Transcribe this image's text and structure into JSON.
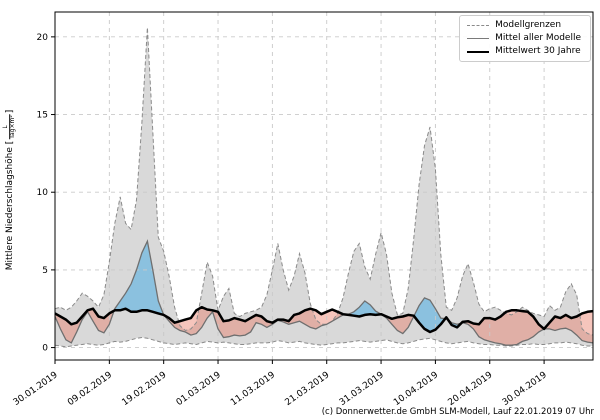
{
  "footer": "(c) Donnerwetter.de GmbH SLM-Modell, Lauf 22.01.2019 07 Uhr",
  "ylabel": {
    "prefix": "Mittlere Niederschlagshöhe [",
    "frac_num": "L",
    "frac_den": "Tag×m²",
    "suffix": "]"
  },
  "legend": {
    "items": [
      {
        "label": "Modellgrenzen",
        "style": "dashed",
        "color": "#8a8a8a"
      },
      {
        "label": "Mittel aller Modelle",
        "style": "gray",
        "color": "#7a7a7a"
      },
      {
        "label": "Mittelwert 30 Jahre",
        "style": "black",
        "color": "#000000"
      }
    ]
  },
  "colors": {
    "band_fill": "rgba(170,170,170,0.45)",
    "above_fill": "rgba(125,188,223,0.85)",
    "below_fill": "rgba(233,116,96,0.42)",
    "bound_line": "#8a8a8a",
    "mean_line": "#6f6f6f",
    "climate_line": "#000000",
    "grid": "#c9c9c9",
    "spine": "#000000"
  },
  "chart_data": {
    "type": "area",
    "title": "",
    "xlabel": "",
    "ylabel": "Mittlere Niederschlagshöhe [L/(Tag×m²)]",
    "grid": true,
    "legend_position": "upper right",
    "xlim": [
      0,
      99
    ],
    "ylim": [
      -0.8,
      21.6
    ],
    "y_ticks": [
      0,
      5,
      10,
      15,
      20
    ],
    "x_tick_days": [
      0,
      10,
      20,
      30,
      40,
      50,
      60,
      70,
      80,
      90
    ],
    "x_ticklabels": [
      "30.01.2019",
      "09.02.2019",
      "19.02.2019",
      "01.03.2019",
      "11.03.2019",
      "21.03.2019",
      "31.03.2019",
      "10.04.2019",
      "20.04.2019",
      "30.04.2019"
    ],
    "series": [
      {
        "name": "Modellgrenze oben",
        "values": [
          2.5,
          2.6,
          2.4,
          2.6,
          3.0,
          3.5,
          3.3,
          3.0,
          2.6,
          3.4,
          5.5,
          8.0,
          9.7,
          8.0,
          7.6,
          9.5,
          14.5,
          20.6,
          13.9,
          7.1,
          6.2,
          4.6,
          2.6,
          1.4,
          1.1,
          1.2,
          1.6,
          3.5,
          5.5,
          4.6,
          2.4,
          3.3,
          3.8,
          2.2,
          2.0,
          2.2,
          2.3,
          2.4,
          2.6,
          3.4,
          5.0,
          6.7,
          5.0,
          3.7,
          4.6,
          6.05,
          4.8,
          2.8,
          1.8,
          1.5,
          1.5,
          1.7,
          2.2,
          3.2,
          4.8,
          6.2,
          6.7,
          5.2,
          4.4,
          6.0,
          7.4,
          6.0,
          3.5,
          2.1,
          2.2,
          3.8,
          7.0,
          10.5,
          13.0,
          14.2,
          11.5,
          6.0,
          2.6,
          2.4,
          3.2,
          4.6,
          5.4,
          4.2,
          2.8,
          2.3,
          2.5,
          2.6,
          2.4,
          2.2,
          2.1,
          2.3,
          2.6,
          2.4,
          2.2,
          2.1,
          2.0,
          2.7,
          2.4,
          2.6,
          3.6,
          4.1,
          3.4,
          1.2,
          0.9,
          0.8
        ]
      },
      {
        "name": "Modellgrenze unten",
        "values": [
          0.15,
          0.1,
          0.05,
          0.1,
          0.15,
          0.2,
          0.25,
          0.2,
          0.15,
          0.2,
          0.3,
          0.4,
          0.35,
          0.4,
          0.5,
          0.6,
          0.65,
          0.6,
          0.5,
          0.4,
          0.3,
          0.25,
          0.2,
          0.25,
          0.3,
          0.25,
          0.2,
          0.3,
          0.4,
          0.35,
          0.3,
          0.35,
          0.3,
          0.25,
          0.2,
          0.2,
          0.25,
          0.3,
          0.3,
          0.3,
          0.35,
          0.45,
          0.4,
          0.3,
          0.35,
          0.4,
          0.3,
          0.25,
          0.2,
          0.15,
          0.2,
          0.25,
          0.3,
          0.3,
          0.35,
          0.4,
          0.45,
          0.4,
          0.35,
          0.4,
          0.45,
          0.5,
          0.4,
          0.3,
          0.25,
          0.3,
          0.4,
          0.5,
          0.55,
          0.6,
          0.5,
          0.4,
          0.3,
          0.25,
          0.3,
          0.35,
          0.4,
          0.3,
          0.25,
          0.2,
          0.2,
          0.15,
          0.15,
          0.1,
          0.1,
          0.15,
          0.2,
          0.2,
          0.25,
          0.2,
          0.2,
          0.25,
          0.3,
          0.3,
          0.35,
          0.3,
          0.25,
          0.15,
          0.1,
          0.1
        ]
      },
      {
        "name": "Mittel aller Modelle",
        "values": [
          2.0,
          1.2,
          0.5,
          0.3,
          1.0,
          1.8,
          2.3,
          1.7,
          1.1,
          0.95,
          1.5,
          2.5,
          3.0,
          3.5,
          4.1,
          5.0,
          6.1,
          6.85,
          5.0,
          3.0,
          2.1,
          1.7,
          1.3,
          1.1,
          1.0,
          0.8,
          0.9,
          1.3,
          1.9,
          2.3,
          1.2,
          0.65,
          0.7,
          0.8,
          0.75,
          0.8,
          1.0,
          1.6,
          1.5,
          1.3,
          1.5,
          1.75,
          1.65,
          1.5,
          1.6,
          1.7,
          1.5,
          1.3,
          1.2,
          1.4,
          1.5,
          1.7,
          1.9,
          2.1,
          2.15,
          2.3,
          2.6,
          3.0,
          2.75,
          2.35,
          2.15,
          1.9,
          1.5,
          1.1,
          0.9,
          1.3,
          2.0,
          2.7,
          3.2,
          3.05,
          2.5,
          1.9,
          1.85,
          1.6,
          1.5,
          1.6,
          1.5,
          1.2,
          0.7,
          0.5,
          0.4,
          0.3,
          0.25,
          0.15,
          0.15,
          0.2,
          0.4,
          0.5,
          0.7,
          1.0,
          1.2,
          1.2,
          1.1,
          1.2,
          1.25,
          1.1,
          0.8,
          0.45,
          0.35,
          0.3
        ]
      },
      {
        "name": "Mittelwert 30 Jahre",
        "values": [
          2.2,
          2.0,
          1.8,
          1.5,
          1.6,
          2.0,
          2.4,
          2.5,
          2.0,
          1.9,
          2.2,
          2.4,
          2.4,
          2.5,
          2.3,
          2.3,
          2.4,
          2.4,
          2.3,
          2.2,
          2.1,
          1.9,
          1.6,
          1.7,
          1.8,
          1.9,
          2.4,
          2.6,
          2.45,
          2.4,
          2.3,
          1.7,
          1.75,
          1.9,
          1.8,
          1.7,
          1.9,
          2.1,
          2.0,
          1.7,
          1.6,
          1.8,
          1.8,
          1.7,
          2.1,
          2.2,
          2.4,
          2.5,
          2.4,
          2.15,
          2.3,
          2.45,
          2.3,
          2.15,
          2.1,
          2.05,
          2.0,
          2.1,
          2.15,
          2.1,
          2.15,
          2.0,
          1.85,
          1.95,
          2.0,
          2.1,
          2.05,
          1.6,
          1.2,
          1.0,
          1.15,
          1.5,
          1.95,
          1.45,
          1.3,
          1.65,
          1.7,
          1.55,
          1.5,
          1.9,
          1.9,
          1.8,
          2.0,
          2.3,
          2.4,
          2.4,
          2.35,
          2.3,
          2.0,
          1.5,
          1.2,
          1.6,
          2.0,
          1.9,
          2.1,
          1.9,
          2.0,
          2.2,
          2.3,
          2.35
        ]
      }
    ]
  }
}
